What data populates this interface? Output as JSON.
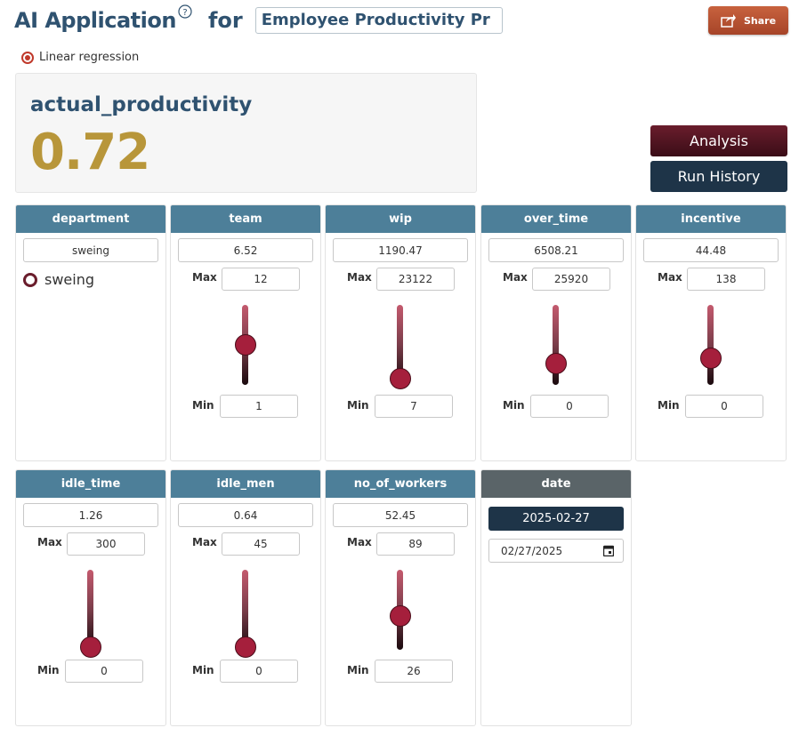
{
  "header": {
    "title": "AI Application",
    "help_icon": "?",
    "for_label": "for",
    "app_name": "Employee Productivity Pr",
    "share_label": "Share"
  },
  "model": {
    "option_label": "Linear regression",
    "selected": true
  },
  "result": {
    "label": "actual_productivity",
    "value": "0.72"
  },
  "actions": {
    "analysis_label": "Analysis",
    "history_label": "Run History"
  },
  "colors": {
    "header_bar": "#4d7f99",
    "date_header": "#5a6468",
    "result_value": "#b8963a",
    "thumb": "#a51f3c",
    "dark_navy": "#1e3448",
    "analysis_bg": "#6a1d2c",
    "share_bg": "#c8623e"
  },
  "department": {
    "header": "department",
    "value": "sweing",
    "option": "sweing"
  },
  "sliders": [
    {
      "key": "team",
      "header": "team",
      "value": "6.52",
      "max_label": "Max",
      "max": "12",
      "min_label": "Min",
      "min": "1",
      "level": 0.5
    },
    {
      "key": "wip",
      "header": "wip",
      "value": "1190.47",
      "max_label": "Max",
      "max": "23122",
      "min_label": "Min",
      "min": "7",
      "level": 0.05
    },
    {
      "key": "over_time",
      "header": "over_time",
      "value": "6508.21",
      "max_label": "Max",
      "max": "25920",
      "min_label": "Min",
      "min": "0",
      "level": 0.25
    },
    {
      "key": "incentive",
      "header": "incentive",
      "value": "44.48",
      "max_label": "Max",
      "max": "138",
      "min_label": "Min",
      "min": "0",
      "level": 0.32
    },
    {
      "key": "idle_time",
      "header": "idle_time",
      "value": "1.26",
      "max_label": "Max",
      "max": "300",
      "min_label": "Min",
      "min": "0",
      "level": 0.0
    },
    {
      "key": "idle_men",
      "header": "idle_men",
      "value": "0.64",
      "max_label": "Max",
      "max": "45",
      "min_label": "Min",
      "min": "0",
      "level": 0.0
    },
    {
      "key": "no_of_workers",
      "header": "no_of_workers",
      "value": "52.45",
      "max_label": "Max",
      "max": "89",
      "min_label": "Min",
      "min": "26",
      "level": 0.42
    }
  ],
  "date": {
    "header": "date",
    "chip": "2025-02-27",
    "input": "02/27/2025",
    "icon": "calendar-icon"
  }
}
